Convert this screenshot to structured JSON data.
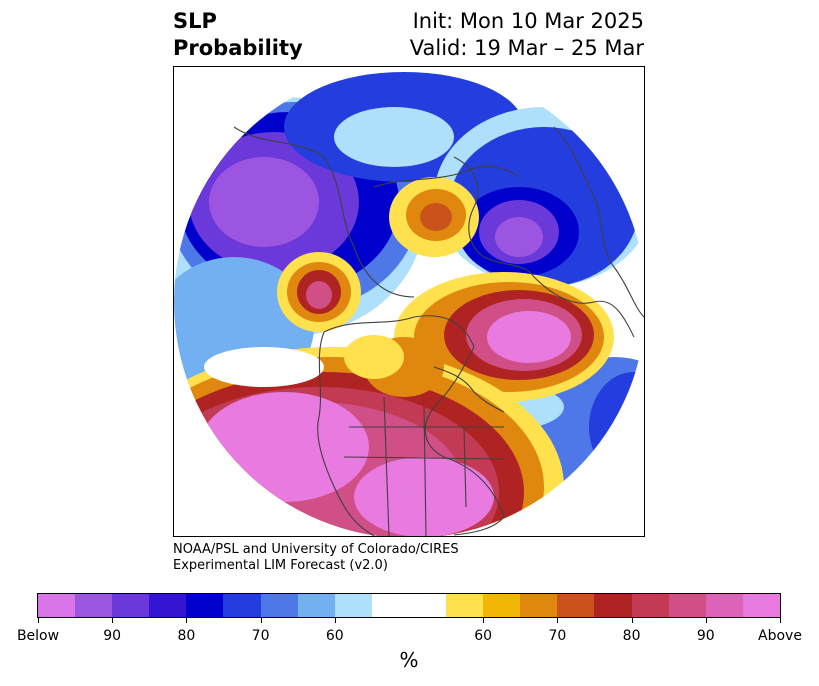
{
  "title": {
    "left_line1": "SLP",
    "left_line2": "Probability",
    "right_line1": "Init: Mon 10 Mar 2025",
    "right_line2": "Valid: 19 Mar – 25 Mar"
  },
  "credit": {
    "line1": "NOAA/PSL and University of Colorado/CIRES",
    "line2": "Experimental LIM Forecast (v2.0)"
  },
  "colorbar": {
    "colors": [
      "#d873e8",
      "#9c55e0",
      "#6b38d9",
      "#3615d2",
      "#0000cc",
      "#233dde",
      "#4e78e8",
      "#72b0f2",
      "#aedffb",
      "#ffffff",
      "#ffe14d",
      "#f2b705",
      "#e0870f",
      "#c9531b",
      "#b02323",
      "#c23a53",
      "#cf4f86",
      "#dc63b7",
      "#e87ae0"
    ],
    "tick_labels": [
      "Below",
      "90",
      "80",
      "70",
      "60",
      "60",
      "70",
      "80",
      "90",
      "Above"
    ],
    "unit": "%"
  },
  "legend_levels": {
    "below": [
      "Below",
      "90",
      "80",
      "70",
      "60"
    ],
    "above": [
      "60",
      "70",
      "80",
      "90",
      "Above"
    ]
  }
}
